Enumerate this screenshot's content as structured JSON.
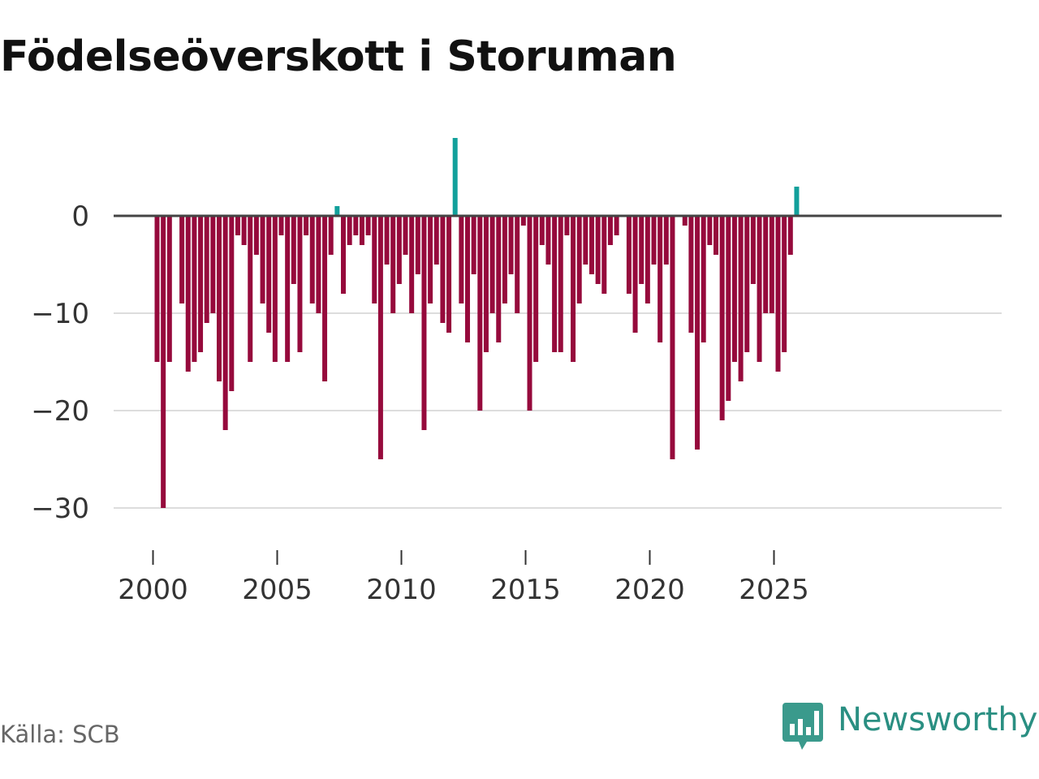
{
  "title": "Födelseöverskott i Storuman",
  "source": "Källa: SCB",
  "brand": {
    "name": "Newsworthy",
    "icon": "newsworthy-logo-icon",
    "color": "#2a8f82"
  },
  "colors": {
    "negative": "#960a3c",
    "positive": "#12a09b",
    "baseline": "#444444",
    "grid": "#dddddd"
  },
  "chart_data": {
    "type": "bar",
    "title": "Födelseöverskott i Storuman",
    "xlabel": "",
    "ylabel": "",
    "frequency": "quarterly",
    "x_ticks": [
      "2000",
      "2005",
      "2010",
      "2015",
      "2020",
      "2025"
    ],
    "y_ticks": [
      0,
      -10,
      -20,
      -30
    ],
    "ylim": [
      -33,
      9
    ],
    "grid": true,
    "series": [
      {
        "name": "Födelseöverskott",
        "periods": [
          "2000 Q1",
          "2000 Q2",
          "2000 Q3",
          "2000 Q4",
          "2001 Q1",
          "2001 Q2",
          "2001 Q3",
          "2001 Q4",
          "2002 Q1",
          "2002 Q2",
          "2002 Q3",
          "2002 Q4",
          "2003 Q1",
          "2003 Q2",
          "2003 Q3",
          "2003 Q4",
          "2004 Q1",
          "2004 Q2",
          "2004 Q3",
          "2004 Q4",
          "2005 Q1",
          "2005 Q2",
          "2005 Q3",
          "2005 Q4",
          "2006 Q1",
          "2006 Q2",
          "2006 Q3",
          "2006 Q4",
          "2007 Q1",
          "2007 Q2",
          "2007 Q3",
          "2007 Q4",
          "2008 Q1",
          "2008 Q2",
          "2008 Q3",
          "2008 Q4",
          "2009 Q1",
          "2009 Q2",
          "2009 Q3",
          "2009 Q4",
          "2010 Q1",
          "2010 Q2",
          "2010 Q3",
          "2010 Q4",
          "2011 Q1",
          "2011 Q2",
          "2011 Q3",
          "2011 Q4",
          "2012 Q1",
          "2012 Q2",
          "2012 Q3",
          "2012 Q4",
          "2013 Q1",
          "2013 Q2",
          "2013 Q3",
          "2013 Q4",
          "2014 Q1",
          "2014 Q2",
          "2014 Q3",
          "2014 Q4",
          "2015 Q1",
          "2015 Q2",
          "2015 Q3",
          "2015 Q4",
          "2016 Q1",
          "2016 Q2",
          "2016 Q3",
          "2016 Q4",
          "2017 Q1",
          "2017 Q2",
          "2017 Q3",
          "2017 Q4",
          "2018 Q1",
          "2018 Q2",
          "2018 Q3",
          "2018 Q4",
          "2019 Q1",
          "2019 Q2",
          "2019 Q3",
          "2019 Q4",
          "2020 Q1",
          "2020 Q2",
          "2020 Q3",
          "2020 Q4",
          "2021 Q1",
          "2021 Q2",
          "2021 Q3",
          "2021 Q4",
          "2022 Q1",
          "2022 Q2",
          "2022 Q3",
          "2022 Q4",
          "2023 Q1",
          "2023 Q2",
          "2023 Q3",
          "2023 Q4",
          "2024 Q1",
          "2024 Q2",
          "2024 Q3",
          "2024 Q4",
          "2025 Q1",
          "2025 Q2",
          "2025 Q3",
          "2025 Q4"
        ],
        "values": [
          -15,
          -30,
          -15,
          0,
          -9,
          -16,
          -15,
          -14,
          -11,
          -10,
          -17,
          -22,
          -18,
          -2,
          -3,
          -15,
          -4,
          -9,
          -12,
          -15,
          -2,
          -15,
          -7,
          -14,
          -2,
          -9,
          -10,
          -17,
          -4,
          1,
          -8,
          -3,
          -2,
          -3,
          -2,
          -9,
          -25,
          -5,
          -10,
          -7,
          -4,
          -10,
          -6,
          -22,
          -9,
          -5,
          -11,
          -12,
          8,
          -9,
          -13,
          -6,
          -20,
          -14,
          -10,
          -13,
          -9,
          -6,
          -10,
          -1,
          -20,
          -15,
          -3,
          -5,
          -14,
          -14,
          -2,
          -15,
          -9,
          -5,
          -6,
          -7,
          -8,
          -3,
          -2,
          0,
          -8,
          -12,
          -7,
          -9,
          -5,
          -13,
          -5,
          -25,
          0,
          -1,
          -12,
          -24,
          -13,
          -3,
          -4,
          -21,
          -19,
          -15,
          -17,
          -14,
          -7,
          -15,
          -10,
          -10,
          -16,
          -14,
          -4,
          3
        ]
      }
    ]
  }
}
